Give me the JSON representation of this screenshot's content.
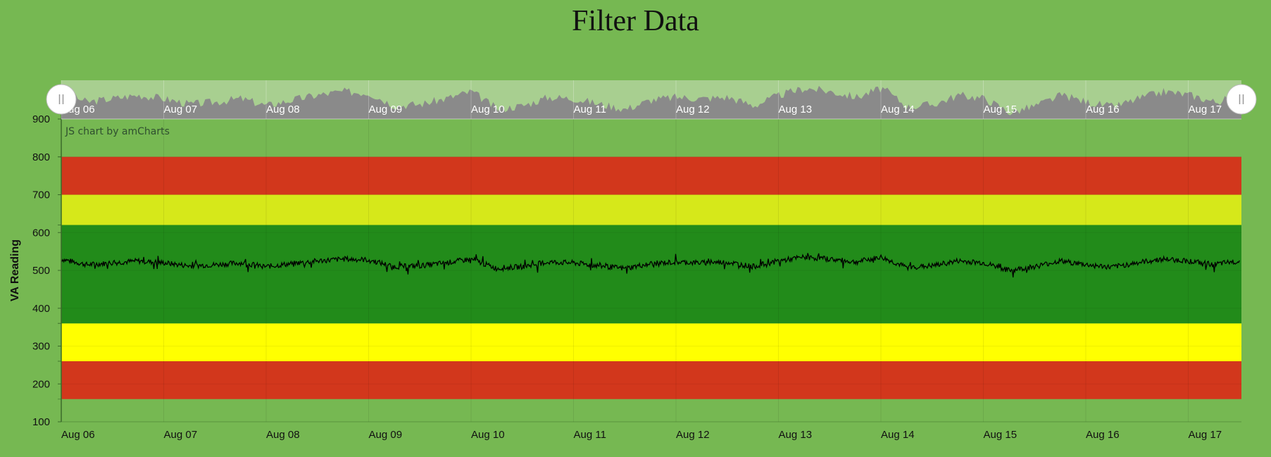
{
  "page": {
    "title": "Filter Data"
  },
  "credit": "JS chart by amCharts",
  "chart_data": {
    "type": "line",
    "title": "Filter Data",
    "xlabel": "",
    "ylabel": "VA Reading",
    "ylim": [
      100,
      900
    ],
    "y_ticks": [
      100,
      200,
      300,
      400,
      500,
      600,
      700,
      800,
      900
    ],
    "x_ticks": [
      "Aug 06",
      "Aug 07",
      "Aug 08",
      "Aug 09",
      "Aug 10",
      "Aug 11",
      "Aug 12",
      "Aug 13",
      "Aug 14",
      "Aug 15",
      "Aug 16",
      "Aug 17"
    ],
    "x_range_days": [
      0,
      11.5
    ],
    "bands": [
      {
        "from": 160,
        "to": 260,
        "color": "#d2371c"
      },
      {
        "from": 260,
        "to": 360,
        "color": "#ffff00"
      },
      {
        "from": 360,
        "to": 620,
        "color": "#228b1a"
      },
      {
        "from": 620,
        "to": 700,
        "color": "#d6e81a"
      },
      {
        "from": 700,
        "to": 800,
        "color": "#d2371c"
      }
    ],
    "series": [
      {
        "color": "#000000",
        "x_days": [
          0,
          0.25,
          0.5,
          0.75,
          1,
          1.25,
          1.5,
          1.75,
          2,
          2.25,
          2.5,
          2.75,
          3,
          3.25,
          3.5,
          3.75,
          4,
          4.25,
          4.5,
          4.75,
          5,
          5.25,
          5.5,
          5.75,
          6,
          6.25,
          6.5,
          6.75,
          7,
          7.25,
          7.5,
          7.75,
          8,
          8.25,
          8.5,
          8.75,
          9,
          9.25,
          9.5,
          9.75,
          10,
          10.25,
          10.5,
          10.75,
          11,
          11.25,
          11.5
        ],
        "values": [
          530,
          515,
          520,
          525,
          520,
          512,
          515,
          520,
          510,
          518,
          525,
          530,
          528,
          510,
          512,
          520,
          530,
          505,
          510,
          522,
          520,
          512,
          505,
          518,
          522,
          520,
          522,
          510,
          525,
          535,
          530,
          522,
          535,
          508,
          512,
          525,
          520,
          500,
          510,
          525,
          515,
          508,
          520,
          530,
          525,
          515,
          525
        ]
      }
    ],
    "navigator": {
      "fill_color": "#8a8a8a",
      "background": "#a8cf90"
    },
    "grid": true,
    "legend": "none"
  }
}
